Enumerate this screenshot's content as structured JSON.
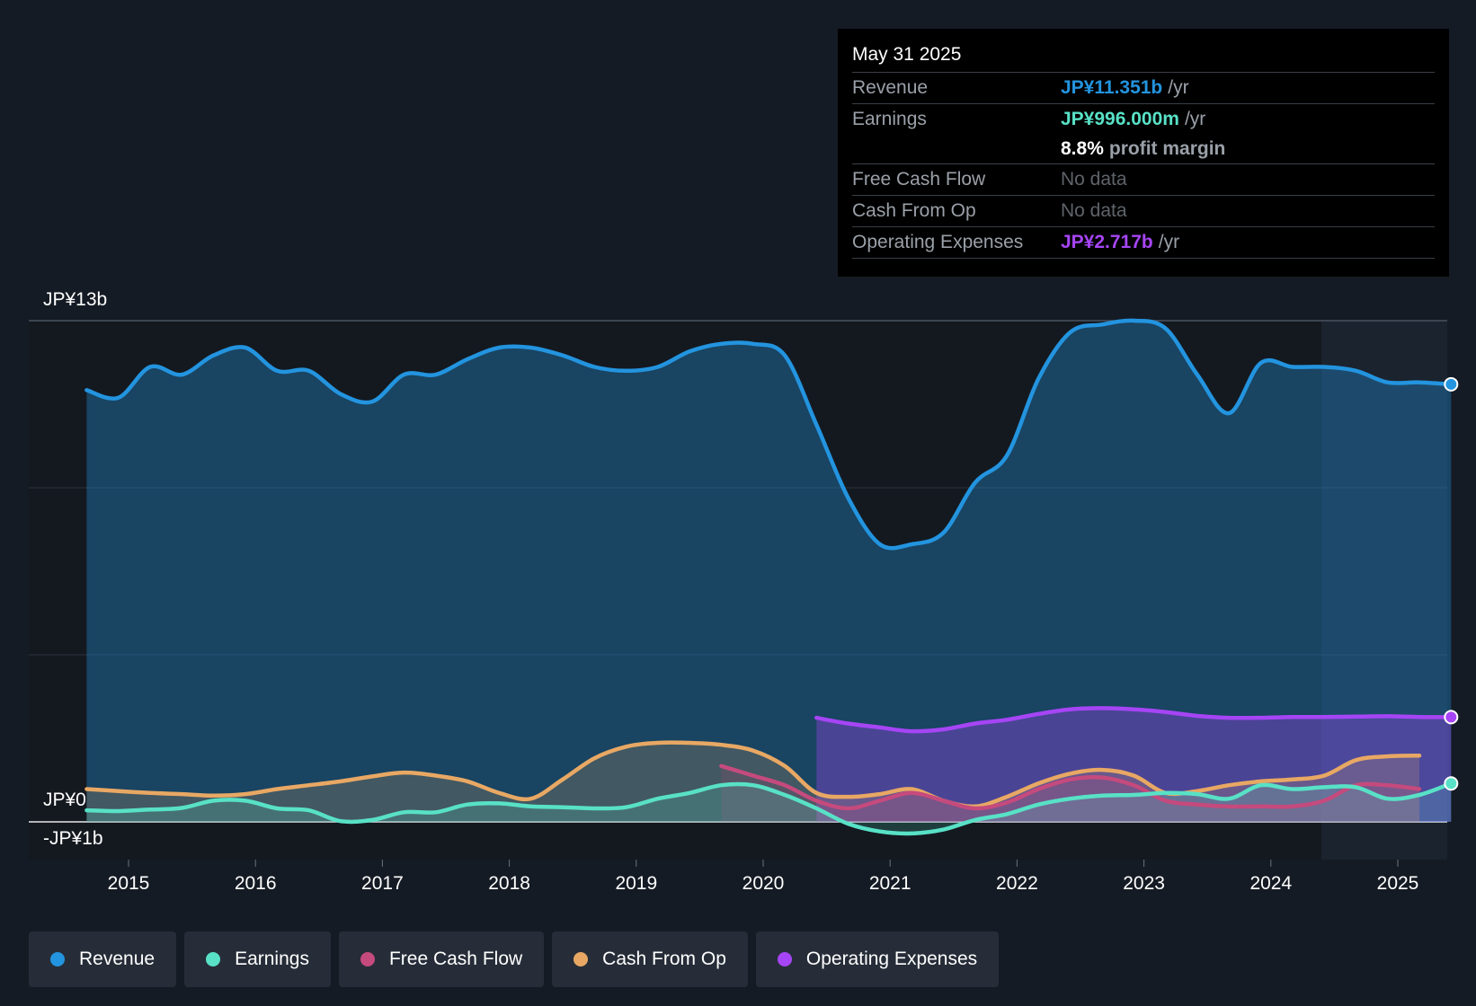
{
  "colors": {
    "revenue": "#2394df",
    "earnings": "#58e1c6",
    "free_cash_flow": "#c54a7d",
    "cash_from_op": "#e8a864",
    "operating_expenses": "#a645f5",
    "background": "#151b24"
  },
  "tooltip": {
    "date": "May 31 2025",
    "rows": {
      "revenue": {
        "label": "Revenue",
        "value": "JP¥11.351b",
        "unit": "/yr"
      },
      "earnings": {
        "label": "Earnings",
        "value": "JP¥996.000m",
        "unit": "/yr"
      },
      "margin": {
        "value": "8.8%",
        "unit": "profit margin"
      },
      "fcf": {
        "label": "Free Cash Flow",
        "value": "No data"
      },
      "cfo": {
        "label": "Cash From Op",
        "value": "No data"
      },
      "opex": {
        "label": "Operating Expenses",
        "value": "JP¥2.717b",
        "unit": "/yr"
      }
    }
  },
  "legend": {
    "revenue": "Revenue",
    "earnings": "Earnings",
    "free_cash_flow": "Free Cash Flow",
    "cash_from_op": "Cash From Op",
    "operating_expenses": "Operating Expenses"
  },
  "chart_data": {
    "type": "area",
    "title": "",
    "xlabel": "",
    "ylabel": "",
    "ylim": [
      -1,
      13
    ],
    "y_axis_labels": {
      "top": "JP¥13b",
      "zero": "JP¥0",
      "bottom": "-JP¥1b"
    },
    "x_ticks": [
      "2015",
      "2016",
      "2017",
      "2018",
      "2019",
      "2020",
      "2021",
      "2022",
      "2023",
      "2024",
      "2025"
    ],
    "series": [
      {
        "name": "Revenue",
        "key": "revenue",
        "x": [
          2014.67,
          2014.92,
          2015.17,
          2015.42,
          2015.67,
          2015.92,
          2016.17,
          2016.42,
          2016.67,
          2016.92,
          2017.17,
          2017.42,
          2017.67,
          2017.92,
          2018.17,
          2018.42,
          2018.67,
          2018.92,
          2019.17,
          2019.42,
          2019.67,
          2019.92,
          2020.17,
          2020.42,
          2020.67,
          2020.92,
          2021.17,
          2021.42,
          2021.67,
          2021.92,
          2022.17,
          2022.42,
          2022.67,
          2022.92,
          2023.17,
          2023.42,
          2023.67,
          2023.92,
          2024.17,
          2024.42,
          2024.67,
          2024.92,
          2025.17,
          2025.42
        ],
        "values": [
          11.2,
          11.0,
          11.8,
          11.6,
          12.1,
          12.3,
          11.7,
          11.7,
          11.1,
          10.9,
          11.6,
          11.6,
          12.0,
          12.3,
          12.3,
          12.1,
          11.8,
          11.7,
          11.8,
          12.2,
          12.4,
          12.4,
          12.1,
          10.3,
          8.4,
          7.2,
          7.2,
          7.5,
          8.8,
          9.5,
          11.5,
          12.7,
          12.9,
          13.0,
          12.8,
          11.6,
          10.6,
          11.9,
          11.8,
          11.8,
          11.7,
          11.4,
          11.4,
          11.35
        ]
      },
      {
        "name": "Earnings",
        "key": "earnings",
        "x": [
          2014.67,
          2014.92,
          2015.17,
          2015.42,
          2015.67,
          2015.92,
          2016.17,
          2016.42,
          2016.67,
          2016.92,
          2017.17,
          2017.42,
          2017.67,
          2017.92,
          2018.17,
          2018.42,
          2018.67,
          2018.92,
          2019.17,
          2019.42,
          2019.67,
          2019.92,
          2020.17,
          2020.42,
          2020.67,
          2020.92,
          2021.17,
          2021.42,
          2021.67,
          2021.92,
          2022.17,
          2022.42,
          2022.67,
          2022.92,
          2023.17,
          2023.42,
          2023.67,
          2023.92,
          2024.17,
          2024.42,
          2024.67,
          2024.92,
          2025.17,
          2025.42
        ],
        "values": [
          0.3,
          0.28,
          0.32,
          0.36,
          0.55,
          0.55,
          0.35,
          0.3,
          0.02,
          0.05,
          0.25,
          0.25,
          0.45,
          0.48,
          0.4,
          0.38,
          0.35,
          0.38,
          0.6,
          0.75,
          0.95,
          0.95,
          0.7,
          0.35,
          -0.05,
          -0.25,
          -0.3,
          -0.2,
          0.05,
          0.2,
          0.45,
          0.6,
          0.68,
          0.7,
          0.75,
          0.72,
          0.6,
          0.95,
          0.85,
          0.9,
          0.9,
          0.6,
          0.7,
          0.996
        ]
      },
      {
        "name": "Free Cash Flow",
        "key": "free_cash_flow",
        "x": [
          2019.67,
          2019.92,
          2020.17,
          2020.42,
          2020.67,
          2020.92,
          2021.17,
          2021.42,
          2021.67,
          2021.92,
          2022.17,
          2022.42,
          2022.67,
          2022.92,
          2023.17,
          2023.42,
          2023.67,
          2023.92,
          2024.17,
          2024.42,
          2024.67,
          2024.92,
          2025.17
        ],
        "values": [
          1.45,
          1.2,
          0.95,
          0.55,
          0.35,
          0.55,
          0.75,
          0.55,
          0.35,
          0.5,
          0.85,
          1.1,
          1.15,
          0.95,
          0.55,
          0.45,
          0.4,
          0.4,
          0.4,
          0.55,
          0.95,
          0.95,
          0.85
        ]
      },
      {
        "name": "Cash From Op",
        "key": "cash_from_op",
        "x": [
          2014.67,
          2014.92,
          2015.17,
          2015.42,
          2015.67,
          2015.92,
          2016.17,
          2016.42,
          2016.67,
          2016.92,
          2017.17,
          2017.42,
          2017.67,
          2017.92,
          2018.17,
          2018.42,
          2018.67,
          2018.92,
          2019.17,
          2019.42,
          2019.67,
          2019.92,
          2020.17,
          2020.42,
          2020.67,
          2020.92,
          2021.17,
          2021.42,
          2021.67,
          2021.92,
          2022.17,
          2022.42,
          2022.67,
          2022.92,
          2023.17,
          2023.42,
          2023.67,
          2023.92,
          2024.17,
          2024.42,
          2024.67,
          2024.92,
          2025.17
        ],
        "values": [
          0.85,
          0.8,
          0.75,
          0.72,
          0.68,
          0.72,
          0.85,
          0.95,
          1.05,
          1.18,
          1.28,
          1.2,
          1.05,
          0.75,
          0.6,
          1.1,
          1.65,
          1.95,
          2.05,
          2.05,
          2.0,
          1.85,
          1.45,
          0.75,
          0.65,
          0.72,
          0.85,
          0.55,
          0.4,
          0.65,
          1.0,
          1.25,
          1.35,
          1.2,
          0.75,
          0.8,
          0.95,
          1.05,
          1.1,
          1.2,
          1.6,
          1.7,
          1.72
        ]
      },
      {
        "name": "Operating Expenses",
        "key": "operating_expenses",
        "x": [
          2020.42,
          2020.67,
          2020.92,
          2021.17,
          2021.42,
          2021.67,
          2021.92,
          2022.17,
          2022.42,
          2022.67,
          2022.92,
          2023.17,
          2023.42,
          2023.67,
          2023.92,
          2024.17,
          2024.42,
          2024.67,
          2024.92,
          2025.17,
          2025.42
        ],
        "values": [
          2.7,
          2.55,
          2.45,
          2.35,
          2.4,
          2.55,
          2.65,
          2.8,
          2.92,
          2.95,
          2.92,
          2.85,
          2.75,
          2.7,
          2.7,
          2.72,
          2.72,
          2.73,
          2.74,
          2.72,
          2.717
        ]
      }
    ]
  }
}
